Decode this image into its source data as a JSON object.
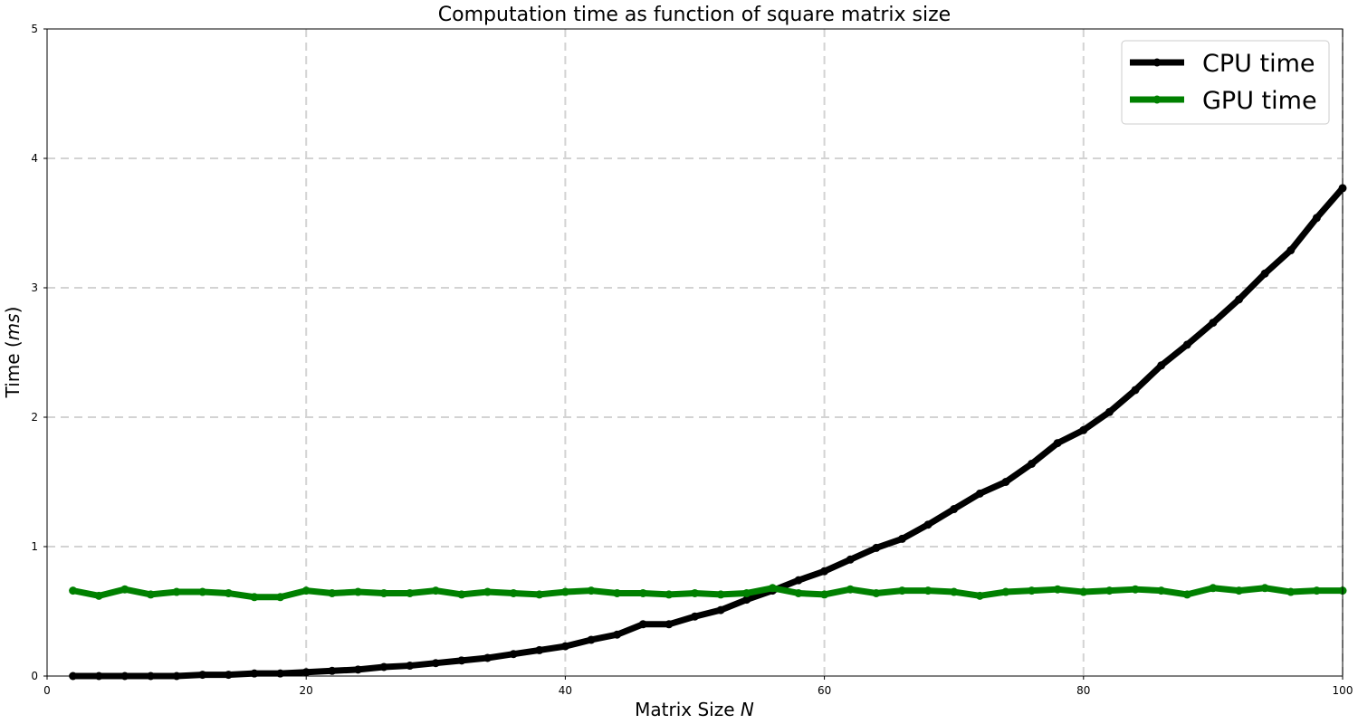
{
  "chart_data": {
    "type": "line",
    "title": "Computation time as function of square matrix size",
    "xlabel_text": "Matrix Size ",
    "xlabel_var": "N",
    "ylabel_text": "Time (",
    "ylabel_var": "ms",
    "ylabel_close": ")",
    "xlim": [
      0,
      100
    ],
    "ylim": [
      0,
      5
    ],
    "xticks": [
      0,
      20,
      40,
      60,
      80,
      100
    ],
    "yticks": [
      0,
      1,
      2,
      3,
      4,
      5
    ],
    "grid": true,
    "legend_position": "top-right",
    "x": [
      2,
      4,
      6,
      8,
      10,
      12,
      14,
      16,
      18,
      20,
      22,
      24,
      26,
      28,
      30,
      32,
      34,
      36,
      38,
      40,
      42,
      44,
      46,
      48,
      50,
      52,
      54,
      56,
      58,
      60,
      62,
      64,
      66,
      68,
      70,
      72,
      74,
      76,
      78,
      80,
      82,
      84,
      86,
      88,
      90,
      92,
      94,
      96,
      98,
      100
    ],
    "series": [
      {
        "name": "CPU time",
        "color": "#000000",
        "values": [
          0.0,
          0.0,
          0.0,
          0.0,
          0.0,
          0.01,
          0.01,
          0.02,
          0.02,
          0.03,
          0.04,
          0.05,
          0.07,
          0.08,
          0.1,
          0.12,
          0.14,
          0.17,
          0.2,
          0.23,
          0.28,
          0.32,
          0.4,
          0.4,
          0.46,
          0.51,
          0.59,
          0.66,
          0.74,
          0.81,
          0.9,
          0.99,
          1.06,
          1.17,
          1.29,
          1.41,
          1.5,
          1.64,
          1.8,
          1.9,
          2.04,
          2.21,
          2.4,
          2.56,
          2.73,
          2.91,
          3.11,
          3.29,
          3.54,
          3.77
        ]
      },
      {
        "name": "GPU time",
        "color": "#008000",
        "values": [
          0.66,
          0.62,
          0.67,
          0.63,
          0.65,
          0.65,
          0.64,
          0.61,
          0.61,
          0.66,
          0.64,
          0.65,
          0.64,
          0.64,
          0.66,
          0.63,
          0.65,
          0.64,
          0.63,
          0.65,
          0.66,
          0.64,
          0.64,
          0.63,
          0.64,
          0.63,
          0.64,
          0.68,
          0.64,
          0.63,
          0.67,
          0.64,
          0.66,
          0.66,
          0.65,
          0.62,
          0.65,
          0.66,
          0.67,
          0.65,
          0.66,
          0.67,
          0.66,
          0.63,
          0.68,
          0.66,
          0.68,
          0.65,
          0.66,
          0.66
        ]
      }
    ]
  }
}
